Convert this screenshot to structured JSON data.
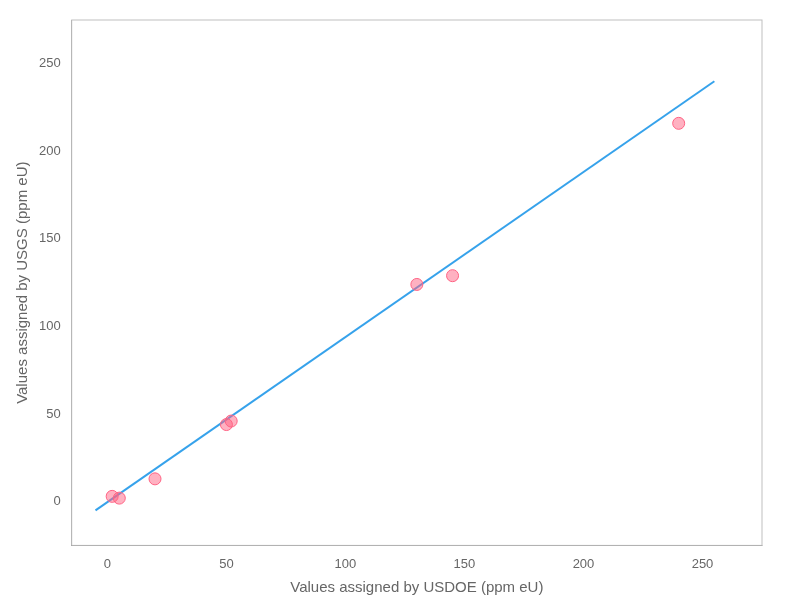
{
  "chart_data": {
    "type": "scatter",
    "xlabel": "Values assigned by USDOE (ppm eU)",
    "ylabel": "Values assigned by USGS (ppm eU)",
    "series": [
      {
        "type": "line",
        "x": [
          -5,
          255
        ],
        "values": [
          -5,
          240
        ]
      },
      {
        "type": "scatter",
        "x": [
          2,
          5,
          20,
          50,
          52,
          130,
          145,
          240
        ],
        "values": [
          3,
          2,
          13,
          44,
          46,
          124,
          129,
          216
        ]
      }
    ],
    "xlim": [
      -15,
      275
    ],
    "ylim": [
      -25,
      275
    ],
    "xticks": [
      0,
      50,
      100,
      150,
      200,
      250
    ],
    "yticks": [
      0,
      50,
      100,
      150,
      200,
      250
    ],
    "grid": false
  }
}
